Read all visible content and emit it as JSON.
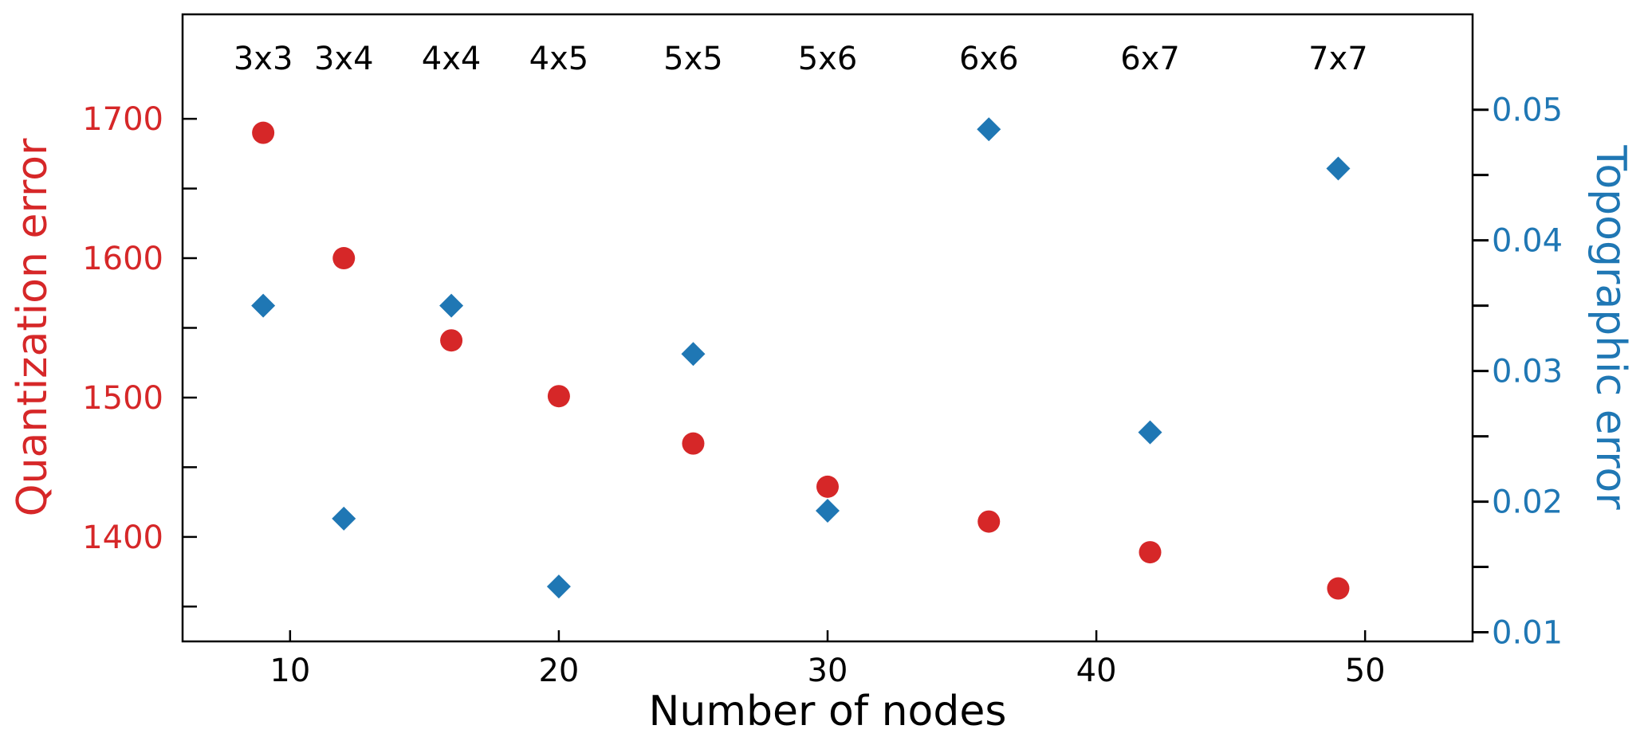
{
  "chart_data": {
    "type": "scatter",
    "title": "",
    "xlabel": "Number of nodes",
    "ylabel_left": "Quantization error",
    "ylabel_right": "Topographic error",
    "xlim": [
      6,
      54
    ],
    "ylim_left": [
      1325,
      1775
    ],
    "ylim_right": [
      0.0093,
      0.0573
    ],
    "x_ticks": [
      10,
      20,
      30,
      40,
      50
    ],
    "y_left_ticks": [
      1400,
      1500,
      1600,
      1700
    ],
    "y_left_minor": [
      1350,
      1450,
      1550,
      1650
    ],
    "y_right_ticks": [
      0.01,
      0.02,
      0.03,
      0.04,
      0.05
    ],
    "y_right_minor": [
      0.015,
      0.025,
      0.035,
      0.045
    ],
    "y_right_tick_labels": [
      "0.01",
      "0.02",
      "0.03",
      "0.04",
      "0.05"
    ],
    "grid": false,
    "legend": "none",
    "colors": {
      "quantization": "#d62728",
      "topographic": "#1f77b4",
      "axis": "#000000"
    },
    "grid_labels": [
      "3x3",
      "3x4",
      "4x4",
      "4x5",
      "5x5",
      "5x6",
      "6x6",
      "6x7",
      "7x7"
    ],
    "x": [
      9,
      12,
      16,
      20,
      25,
      30,
      36,
      42,
      49
    ],
    "series": [
      {
        "axis": "left",
        "marker": "circle",
        "values": [
          1690,
          1600,
          1541,
          1501,
          1467,
          1436,
          1411,
          1389,
          1363
        ]
      },
      {
        "axis": "right",
        "marker": "diamond",
        "values": [
          0.035,
          0.0187,
          0.035,
          0.0135,
          0.0313,
          0.0193,
          0.0485,
          0.0253,
          0.0455
        ]
      }
    ]
  }
}
